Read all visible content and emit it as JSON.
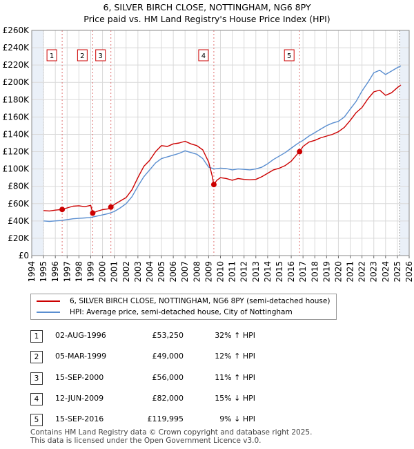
{
  "title_line1": "6, SILVER BIRCH CLOSE, NOTTINGHAM, NG6 8PY",
  "title_line2": "Price paid vs. HM Land Registry's House Price Index (HPI)",
  "colors": {
    "property": "#cc0000",
    "hpi": "#5a8ed0",
    "shade": "#eaf0f8",
    "grid": "#d9d9d9",
    "marker_line": "#e07070"
  },
  "legend": {
    "property_label": "6, SILVER BIRCH CLOSE, NOTTINGHAM, NG6 8PY (semi-detached house)",
    "hpi_label": "HPI: Average price, semi-detached house, City of Nottingham"
  },
  "transactions": [
    {
      "num": "1",
      "date": "02-AUG-1996",
      "price": "£53,250",
      "hpi": "32% ↑ HPI"
    },
    {
      "num": "2",
      "date": "05-MAR-1999",
      "price": "£49,000",
      "hpi": "12% ↑ HPI"
    },
    {
      "num": "3",
      "date": "15-SEP-2000",
      "price": "£56,000",
      "hpi": "11% ↑ HPI"
    },
    {
      "num": "4",
      "date": "12-JUN-2009",
      "price": "£82,000",
      "hpi": "15% ↓ HPI"
    },
    {
      "num": "5",
      "date": "15-SEP-2016",
      "price": "£119,995",
      "hpi": "9% ↓ HPI"
    }
  ],
  "footer_line1": "Contains HM Land Registry data © Crown copyright and database right 2025.",
  "footer_line2": "This data is licensed under the Open Government Licence v3.0.",
  "chart_data": {
    "type": "line",
    "title": "6, SILVER BIRCH CLOSE, NOTTINGHAM, NG6 8PY — Price paid vs. HM Land Registry's House Price Index (HPI)",
    "xlabel": "",
    "ylabel": "",
    "xlim": [
      1994,
      2026
    ],
    "ylim": [
      0,
      260000
    ],
    "grid": true,
    "legend_position": "bottom-left",
    "x_ticks": [
      1994,
      1995,
      1996,
      1997,
      1998,
      1999,
      2000,
      2001,
      2002,
      2003,
      2004,
      2005,
      2006,
      2007,
      2008,
      2009,
      2010,
      2011,
      2012,
      2013,
      2014,
      2015,
      2016,
      2017,
      2018,
      2019,
      2020,
      2021,
      2022,
      2023,
      2024,
      2025,
      2026
    ],
    "y_ticks": [
      0,
      20000,
      40000,
      60000,
      80000,
      100000,
      120000,
      140000,
      160000,
      180000,
      200000,
      220000,
      240000,
      260000
    ],
    "y_tick_labels": [
      "£0",
      "£20K",
      "£40K",
      "£60K",
      "£80K",
      "£100K",
      "£120K",
      "£140K",
      "£160K",
      "£180K",
      "£200K",
      "£220K",
      "£240K",
      "£260K"
    ],
    "shaded_ranges": [
      [
        1994,
        1995.0
      ],
      [
        2025.2,
        2026
      ]
    ],
    "sales": [
      {
        "label": "1",
        "x": 1996.58,
        "y": 53250
      },
      {
        "label": "2",
        "x": 1999.17,
        "y": 49000
      },
      {
        "label": "3",
        "x": 2000.71,
        "y": 56000
      },
      {
        "label": "4",
        "x": 2009.44,
        "y": 82000
      },
      {
        "label": "5",
        "x": 2016.71,
        "y": 119995
      }
    ],
    "series": [
      {
        "name": "6, SILVER BIRCH CLOSE, NOTTINGHAM, NG6 8PY (semi-detached house)",
        "x": [
          1995.0,
          1995.5,
          1996.0,
          1996.58,
          1997.0,
          1997.5,
          1998.0,
          1998.5,
          1999.0,
          1999.17,
          1999.5,
          2000.0,
          2000.5,
          2000.71,
          2001.0,
          2001.5,
          2002.0,
          2002.5,
          2003.0,
          2003.5,
          2004.0,
          2004.5,
          2005.0,
          2005.5,
          2006.0,
          2006.5,
          2007.0,
          2007.5,
          2008.0,
          2008.5,
          2009.0,
          2009.3,
          2009.44,
          2009.7,
          2010.0,
          2010.5,
          2011.0,
          2011.5,
          2012.0,
          2012.5,
          2013.0,
          2013.5,
          2014.0,
          2014.5,
          2015.0,
          2015.5,
          2016.0,
          2016.5,
          2016.71,
          2017.0,
          2017.5,
          2018.0,
          2018.5,
          2019.0,
          2019.5,
          2020.0,
          2020.5,
          2021.0,
          2021.5,
          2022.0,
          2022.5,
          2023.0,
          2023.5,
          2024.0,
          2024.5,
          2025.0,
          2025.3
        ],
        "y": [
          52000,
          51500,
          52500,
          53250,
          55000,
          57000,
          57500,
          56500,
          58000,
          49000,
          51000,
          53000,
          54000,
          56000,
          59000,
          63000,
          67000,
          76000,
          90000,
          103000,
          110000,
          120000,
          127000,
          126000,
          129000,
          130000,
          132000,
          129000,
          127000,
          122000,
          108000,
          92000,
          82000,
          87000,
          90000,
          89000,
          87000,
          89000,
          88000,
          87500,
          88000,
          91000,
          95000,
          99000,
          101000,
          104000,
          109000,
          117000,
          119995,
          126000,
          131000,
          133000,
          136000,
          138000,
          140000,
          143000,
          148000,
          156000,
          165000,
          171000,
          181000,
          189000,
          191000,
          185000,
          188000,
          194000,
          197000
        ]
      },
      {
        "name": "HPI: Average price, semi-detached house, City of Nottingham",
        "x": [
          1995.0,
          1995.5,
          1996.0,
          1996.5,
          1997.0,
          1997.5,
          1998.0,
          1998.5,
          1999.0,
          1999.5,
          2000.0,
          2000.5,
          2001.0,
          2001.5,
          2002.0,
          2002.5,
          2003.0,
          2003.5,
          2004.0,
          2004.5,
          2005.0,
          2005.5,
          2006.0,
          2006.5,
          2007.0,
          2007.5,
          2008.0,
          2008.5,
          2009.0,
          2009.5,
          2010.0,
          2010.5,
          2011.0,
          2011.5,
          2012.0,
          2012.5,
          2013.0,
          2013.5,
          2014.0,
          2014.5,
          2015.0,
          2015.5,
          2016.0,
          2016.5,
          2017.0,
          2017.5,
          2018.0,
          2018.5,
          2019.0,
          2019.5,
          2020.0,
          2020.5,
          2021.0,
          2021.5,
          2022.0,
          2022.5,
          2023.0,
          2023.5,
          2024.0,
          2024.5,
          2025.0,
          2025.3
        ],
        "y": [
          40000,
          39500,
          40000,
          40500,
          41500,
          42500,
          43000,
          43500,
          44000,
          45500,
          47000,
          48500,
          51000,
          55000,
          60000,
          68000,
          80000,
          91000,
          99000,
          107000,
          112000,
          114000,
          116000,
          118000,
          121000,
          119000,
          117000,
          112000,
          102000,
          100000,
          101000,
          100500,
          99000,
          100000,
          99500,
          99000,
          100000,
          102000,
          106000,
          111000,
          115000,
          119000,
          124000,
          129000,
          133000,
          138000,
          142000,
          146000,
          150000,
          153000,
          155000,
          160000,
          169000,
          178000,
          190000,
          200000,
          211000,
          214000,
          209000,
          213000,
          217000,
          219000
        ]
      }
    ]
  }
}
